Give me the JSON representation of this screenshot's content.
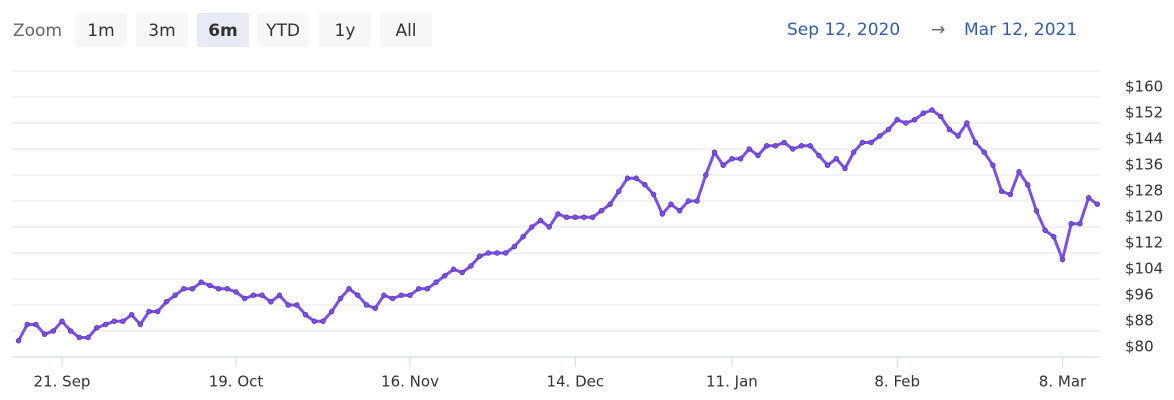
{
  "range_selector": {
    "label": "Zoom",
    "buttons": [
      "1m",
      "3m",
      "6m",
      "YTD",
      "1y",
      "All"
    ],
    "selected": 2
  },
  "date_range": {
    "from": "Sep 12, 2020",
    "arrow": "→",
    "to": "Mar 12, 2021"
  },
  "chart_data": {
    "type": "line",
    "color": "#7e4fe6",
    "grid": true,
    "categories": [
      null,
      null,
      null,
      null,
      null,
      "21. Sep",
      null,
      null,
      null,
      null,
      null,
      null,
      null,
      null,
      null,
      null,
      null,
      null,
      null,
      null,
      null,
      null,
      null,
      null,
      null,
      "19. Oct",
      null,
      null,
      null,
      null,
      null,
      null,
      null,
      null,
      null,
      null,
      null,
      null,
      null,
      null,
      null,
      null,
      null,
      null,
      null,
      "16. Nov",
      null,
      null,
      null,
      null,
      null,
      null,
      null,
      null,
      null,
      null,
      null,
      null,
      null,
      null,
      null,
      null,
      null,
      null,
      "14. Dec",
      null,
      null,
      null,
      null,
      null,
      null,
      null,
      null,
      null,
      null,
      null,
      null,
      null,
      null,
      null,
      null,
      null,
      "11. Jan",
      null,
      null,
      null,
      null,
      null,
      null,
      null,
      null,
      null,
      null,
      null,
      null,
      null,
      null,
      null,
      null,
      null,
      null,
      "8. Feb",
      null,
      null,
      null,
      null,
      null,
      null,
      null,
      null,
      null,
      null,
      null,
      null,
      null,
      null,
      null,
      null,
      null,
      null,
      "8. Mar",
      null,
      null,
      null,
      null
    ],
    "values": [
      85,
      90,
      90,
      87,
      88,
      91,
      88,
      86,
      86,
      89,
      90,
      91,
      91,
      93,
      90,
      94,
      94,
      97,
      99,
      101,
      101,
      103,
      102,
      101,
      101,
      100,
      98,
      99,
      99,
      97,
      99,
      96,
      96,
      93,
      91,
      91,
      94,
      98,
      101,
      99,
      96,
      95,
      99,
      98,
      99,
      99,
      101,
      101,
      103,
      105,
      107,
      106,
      108,
      111,
      112,
      112,
      112,
      114,
      117,
      120,
      122,
      120,
      124,
      123,
      123,
      123,
      123,
      125,
      127,
      131,
      135,
      135,
      133,
      130,
      124,
      127,
      125,
      128,
      128,
      136,
      143,
      139,
      141,
      141,
      144,
      142,
      145,
      145,
      146,
      144,
      145,
      145,
      142,
      139,
      141,
      138,
      143,
      146,
      146,
      148,
      150,
      153,
      152,
      153,
      155,
      156,
      154,
      150,
      148,
      152,
      146,
      143,
      139,
      131,
      130,
      137,
      133,
      125,
      119,
      117,
      110,
      121,
      121,
      129,
      127
    ],
    "ylim": [
      80,
      168
    ],
    "yticks": [
      {
        "value": 80,
        "label": "$80"
      },
      {
        "value": 88,
        "label": "$88"
      },
      {
        "value": 96,
        "label": "$96"
      },
      {
        "value": 104,
        "label": "$104"
      },
      {
        "value": 112,
        "label": "$112"
      },
      {
        "value": 120,
        "label": "$120"
      },
      {
        "value": 128,
        "label": "$128"
      },
      {
        "value": 136,
        "label": "$136"
      },
      {
        "value": 144,
        "label": "$144"
      },
      {
        "value": 152,
        "label": "$152"
      },
      {
        "value": 160,
        "label": "$160"
      }
    ]
  }
}
